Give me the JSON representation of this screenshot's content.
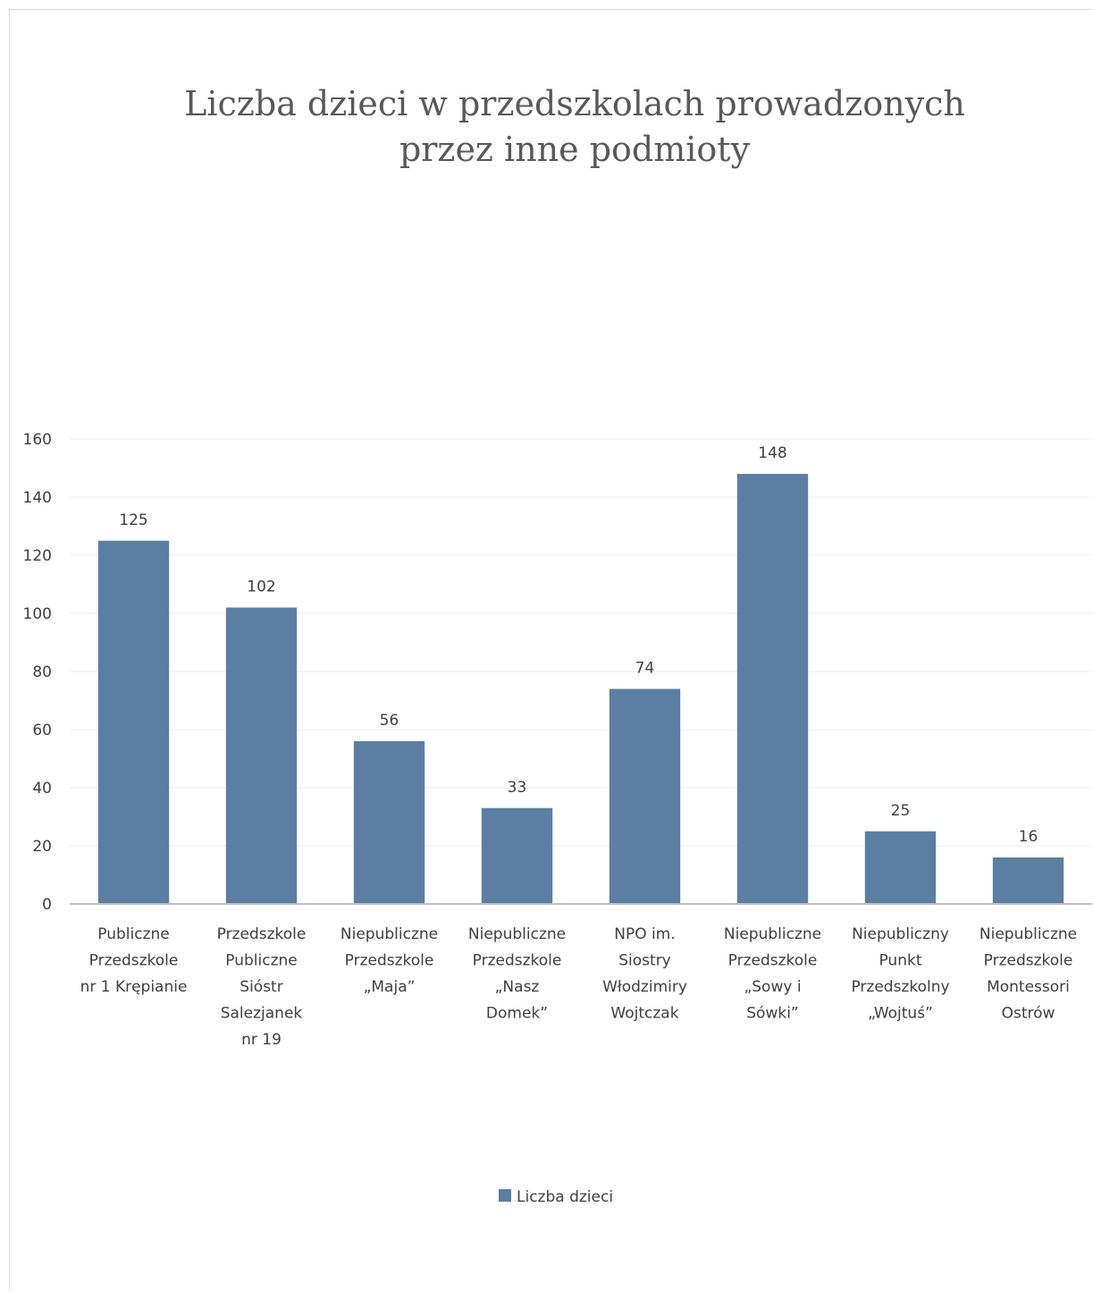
{
  "chart_data": {
    "type": "bar",
    "title_lines": [
      "Liczba dzieci w przedszkolach prowadzonych",
      "przez inne podmioty"
    ],
    "categories": [
      [
        "Publiczne",
        "Przedszkole",
        "nr 1 Krępianie"
      ],
      [
        "Przedszkole",
        "Publiczne",
        "Sióstr",
        "Salezjanek",
        "nr 19"
      ],
      [
        "Niepubliczne",
        "Przedszkole",
        "„Maja”"
      ],
      [
        "Niepubliczne",
        "Przedszkole",
        "„Nasz",
        "Domek”"
      ],
      [
        "NPO im.",
        "Siostry",
        "Włodzimiry",
        "Wojtczak"
      ],
      [
        "Niepubliczne",
        "Przedszkole",
        "„Sowy  i",
        "Sówki”"
      ],
      [
        "Niepubliczny",
        "Punkt",
        "Przedszkolny",
        "„Wojtuś”"
      ],
      [
        "Niepubliczne",
        "Przedszkole",
        "Montessori",
        "Ostrów"
      ]
    ],
    "series": [
      {
        "name": "Liczba dzieci",
        "values": [
          125,
          102,
          56,
          33,
          74,
          148,
          25,
          16
        ]
      }
    ],
    "ylim": [
      0,
      160
    ],
    "yticks": [
      0,
      20,
      40,
      60,
      80,
      100,
      120,
      140,
      160
    ],
    "grid": true,
    "legend_position": "bottom",
    "colors": {
      "bar": "#5b7fa3",
      "grid": "#ececec",
      "axis": "#bfbfbf"
    }
  }
}
